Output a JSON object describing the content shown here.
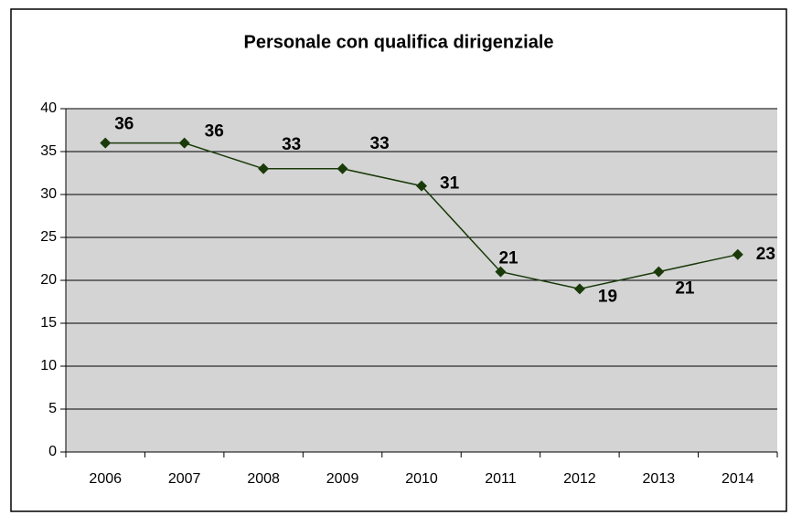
{
  "chart_data": {
    "type": "line",
    "title": "Personale con qualifica dirigenziale",
    "categories": [
      "2006",
      "2007",
      "2008",
      "2009",
      "2010",
      "2011",
      "2012",
      "2013",
      "2014"
    ],
    "values": [
      36,
      36,
      33,
      33,
      31,
      21,
      19,
      21,
      23
    ],
    "color": "#1a3a0a",
    "ylim": [
      0,
      40
    ],
    "yticks": [
      0,
      5,
      10,
      15,
      20,
      25,
      30,
      35,
      40
    ],
    "grid": true,
    "plot_background": "#d4d4d4"
  }
}
